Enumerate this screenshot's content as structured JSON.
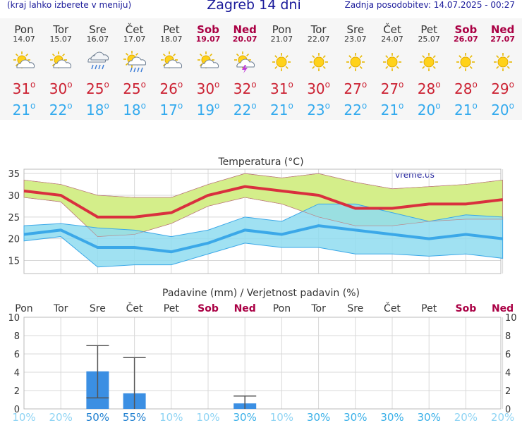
{
  "header": {
    "left_note": "(kraj lahko izberete v meniju)",
    "title": "Zagreb 14 dni",
    "updated": "Zadnja posodobitev: 14.07.2025 - 00:27"
  },
  "colors": {
    "max_line": "#d9303e",
    "min_line": "#3ba8e8",
    "max_band": "#d4ee8a",
    "min_band": "#8fdcf0",
    "overlap": "#7fd27f",
    "precip_bar": "#3b8fe3",
    "weekend": "#aa0044"
  },
  "days": [
    {
      "name": "Pon",
      "date": "14.07",
      "icon": "sun-cloud-icon",
      "max": "31",
      "min": "21",
      "weekend": false
    },
    {
      "name": "Tor",
      "date": "15.07",
      "icon": "sun-cloud-icon",
      "max": "30",
      "min": "22",
      "weekend": false
    },
    {
      "name": "Sre",
      "date": "16.07",
      "icon": "cloud-rain-icon",
      "max": "25",
      "min": "18",
      "weekend": false
    },
    {
      "name": "Čet",
      "date": "17.07",
      "icon": "sun-cloud-rain-icon",
      "max": "25",
      "min": "18",
      "weekend": false
    },
    {
      "name": "Pet",
      "date": "18.07",
      "icon": "sun-cloud-icon",
      "max": "26",
      "min": "17",
      "weekend": false
    },
    {
      "name": "Sob",
      "date": "19.07",
      "icon": "sun-cloud-icon",
      "max": "30",
      "min": "19",
      "weekend": true
    },
    {
      "name": "Ned",
      "date": "20.07",
      "icon": "sun-cloud-thunder-icon",
      "max": "32",
      "min": "22",
      "weekend": true
    },
    {
      "name": "Pon",
      "date": "21.07",
      "icon": "sun-icon",
      "max": "31",
      "min": "21",
      "weekend": false
    },
    {
      "name": "Tor",
      "date": "22.07",
      "icon": "sun-icon",
      "max": "30",
      "min": "23",
      "weekend": false
    },
    {
      "name": "Sre",
      "date": "23.07",
      "icon": "sun-icon",
      "max": "27",
      "min": "22",
      "weekend": false
    },
    {
      "name": "Čet",
      "date": "24.07",
      "icon": "sun-icon",
      "max": "27",
      "min": "21",
      "weekend": false
    },
    {
      "name": "Pet",
      "date": "25.07",
      "icon": "sun-icon",
      "max": "28",
      "min": "20",
      "weekend": false
    },
    {
      "name": "Sob",
      "date": "26.07",
      "icon": "sun-icon",
      "max": "28",
      "min": "21",
      "weekend": true
    },
    {
      "name": "Ned",
      "date": "27.07",
      "icon": "sun-icon",
      "max": "29",
      "min": "20",
      "weekend": true
    }
  ],
  "chart_data": [
    {
      "type": "line",
      "title": "Temperatura (°C)",
      "watermark": "vreme.us",
      "categories": [
        "14.07",
        "15.07",
        "16.07",
        "17.07",
        "18.07",
        "19.07",
        "20.07",
        "21.07",
        "22.07",
        "23.07",
        "24.07",
        "25.07",
        "26.07",
        "27.07"
      ],
      "ylim": [
        12,
        36
      ],
      "yticks": [
        15,
        20,
        25,
        30,
        35
      ],
      "grid": true,
      "series": [
        {
          "values": [
            31,
            30,
            25,
            25,
            26,
            30,
            32,
            31,
            30,
            27,
            27,
            28,
            28,
            29
          ]
        },
        {
          "values": [
            21,
            22,
            18,
            18,
            17,
            19,
            22,
            21,
            23,
            22,
            21,
            20,
            21,
            20
          ]
        },
        {
          "values": [
            33.5,
            32.5,
            30,
            29.5,
            29.5,
            32.5,
            35,
            34,
            35,
            33,
            31.5,
            32,
            32.5,
            33.5
          ]
        },
        {
          "values": [
            29.5,
            28.5,
            20.5,
            21,
            23.5,
            27.5,
            29.5,
            28,
            25,
            23,
            23,
            24,
            24.5,
            24.5
          ]
        },
        {
          "values": [
            23,
            23.5,
            22.5,
            22,
            20.5,
            22,
            25,
            24,
            28,
            28,
            26,
            24,
            25.5,
            25
          ]
        },
        {
          "values": [
            19.5,
            20.5,
            13.5,
            14,
            14,
            16.5,
            19,
            18,
            18,
            16.5,
            16.5,
            16,
            16.5,
            15.5
          ]
        }
      ]
    },
    {
      "type": "bar",
      "title": "Padavine (mm) / Verjetnost padavin (%)",
      "categories": [
        "Pon",
        "Tor",
        "Sre",
        "Čet",
        "Pet",
        "Sob",
        "Ned",
        "Pon",
        "Tor",
        "Sre",
        "Čet",
        "Pet",
        "Sob",
        "Ned"
      ],
      "weekend": [
        false,
        false,
        false,
        false,
        false,
        true,
        true,
        false,
        false,
        false,
        false,
        false,
        true,
        true
      ],
      "ylim": [
        0,
        10
      ],
      "yticks": [
        0,
        2,
        4,
        6,
        8,
        10
      ],
      "grid": true,
      "values": [
        0,
        0,
        4.1,
        1.7,
        0,
        0,
        0.6,
        0,
        0,
        0,
        0,
        0,
        0,
        0
      ],
      "error_high": [
        0,
        0,
        6.9,
        5.6,
        0,
        0,
        1.4,
        0,
        0,
        0,
        0,
        0,
        0,
        0
      ],
      "error_low": [
        0,
        0,
        1.2,
        0,
        0,
        0,
        0,
        0,
        0,
        0,
        0,
        0,
        0,
        0
      ],
      "probability": [
        "10%",
        "20%",
        "50%",
        "55%",
        "10%",
        "10%",
        "30%",
        "10%",
        "30%",
        "30%",
        "30%",
        "30%",
        "20%",
        "20%"
      ],
      "probability_value": [
        10,
        20,
        50,
        55,
        10,
        10,
        30,
        10,
        30,
        30,
        30,
        30,
        20,
        20
      ]
    }
  ]
}
